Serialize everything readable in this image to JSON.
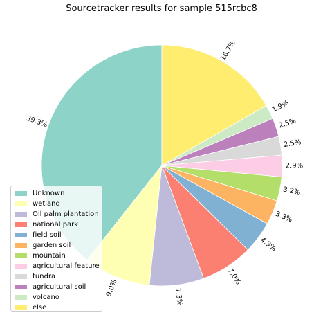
{
  "chart_data": {
    "type": "pie",
    "title": "Sourcetracker results for sample 515rcbc8",
    "slices": [
      {
        "label": "Unknown",
        "value": 39.3,
        "pct_label": "39.3%",
        "color": "#8dd3c7"
      },
      {
        "label": "wetland",
        "value": 9.0,
        "pct_label": "9.0%",
        "color": "#ffffb3"
      },
      {
        "label": "Oil palm plantation",
        "value": 7.3,
        "pct_label": "7.3%",
        "color": "#bebada"
      },
      {
        "label": "national park",
        "value": 7.0,
        "pct_label": "7.0%",
        "color": "#fb8072"
      },
      {
        "label": "field soil",
        "value": 4.3,
        "pct_label": "4.3%",
        "color": "#80b1d3"
      },
      {
        "label": "garden soil",
        "value": 3.3,
        "pct_label": "3.3%",
        "color": "#fdb462"
      },
      {
        "label": "mountain",
        "value": 3.2,
        "pct_label": "3.2%",
        "color": "#b3de69"
      },
      {
        "label": "agricultural feature",
        "value": 2.9,
        "pct_label": "2.9%",
        "color": "#fccde5"
      },
      {
        "label": "tundra",
        "value": 2.5,
        "pct_label": "2.5%",
        "color": "#d9d9d9"
      },
      {
        "label": "agricultural soil",
        "value": 2.5,
        "pct_label": "2.5%",
        "color": "#bc80bd"
      },
      {
        "label": "volcano",
        "value": 1.9,
        "pct_label": "1.9%",
        "color": "#ccebc5"
      },
      {
        "label": "else",
        "value": 16.7,
        "pct_label": "16.7%",
        "color": "#ffed6f"
      }
    ],
    "start_angle": "top",
    "direction": "counterclockwise",
    "legend_position": "lower-left"
  }
}
